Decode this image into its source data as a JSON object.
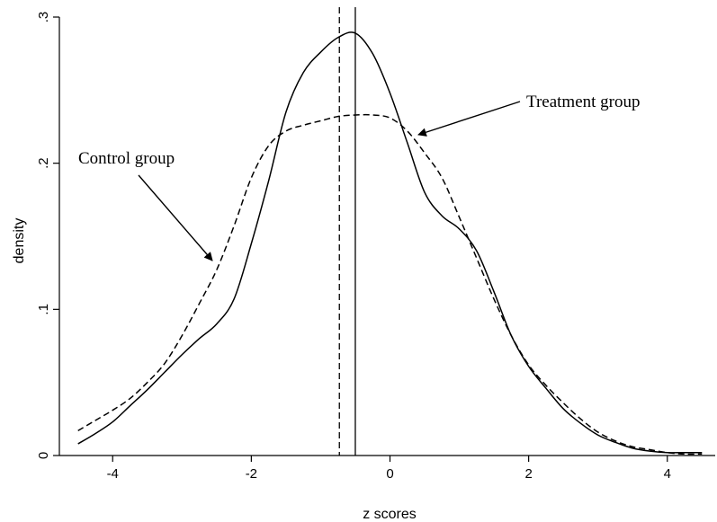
{
  "chart_data": {
    "type": "line",
    "title": "",
    "xlabel": "z scores",
    "ylabel": "density",
    "xlim": [
      -4.6,
      4.6
    ],
    "ylim": [
      0,
      0.3
    ],
    "x_ticks": [
      {
        "value": -4,
        "label": "-4"
      },
      {
        "value": -2,
        "label": "-2"
      },
      {
        "value": 0,
        "label": "0"
      },
      {
        "value": 2,
        "label": "2"
      },
      {
        "value": 4,
        "label": "4"
      }
    ],
    "y_ticks": [
      {
        "value": 0,
        "label": "0"
      },
      {
        "value": 0.1,
        "label": ".1"
      },
      {
        "value": 0.2,
        "label": ".2"
      },
      {
        "value": 0.3,
        "label": ".3"
      }
    ],
    "grid": false,
    "legend": "none",
    "series": [
      {
        "key": "treatment",
        "style": "solid",
        "x": [
          -4.5,
          -4.25,
          -4.0,
          -3.75,
          -3.5,
          -3.25,
          -3.0,
          -2.75,
          -2.5,
          -2.25,
          -2.0,
          -1.75,
          -1.5,
          -1.25,
          -1.0,
          -0.75,
          -0.5,
          -0.25,
          0.0,
          0.25,
          0.5,
          0.75,
          1.0,
          1.25,
          1.5,
          1.75,
          2.0,
          2.25,
          2.5,
          2.75,
          3.0,
          3.25,
          3.5,
          3.75,
          4.0,
          4.25,
          4.5
        ],
        "y": [
          0.008,
          0.015,
          0.023,
          0.034,
          0.045,
          0.057,
          0.069,
          0.08,
          0.09,
          0.107,
          0.145,
          0.188,
          0.235,
          0.262,
          0.276,
          0.286,
          0.289,
          0.275,
          0.248,
          0.214,
          0.18,
          0.164,
          0.155,
          0.14,
          0.112,
          0.082,
          0.061,
          0.046,
          0.032,
          0.022,
          0.014,
          0.009,
          0.005,
          0.003,
          0.002,
          0.002,
          0.002
        ]
      },
      {
        "key": "control",
        "style": "dashed",
        "x": [
          -4.5,
          -4.25,
          -4.0,
          -3.75,
          -3.5,
          -3.25,
          -3.0,
          -2.75,
          -2.5,
          -2.25,
          -2.0,
          -1.75,
          -1.5,
          -1.25,
          -1.0,
          -0.75,
          -0.5,
          -0.25,
          0.0,
          0.25,
          0.5,
          0.75,
          1.0,
          1.25,
          1.5,
          1.75,
          2.0,
          2.25,
          2.5,
          2.75,
          3.0,
          3.25,
          3.5,
          3.75,
          4.0,
          4.25,
          4.5
        ],
        "y": [
          0.017,
          0.024,
          0.031,
          0.039,
          0.05,
          0.063,
          0.082,
          0.104,
          0.127,
          0.157,
          0.19,
          0.212,
          0.222,
          0.226,
          0.229,
          0.232,
          0.233,
          0.233,
          0.231,
          0.222,
          0.207,
          0.19,
          0.163,
          0.135,
          0.107,
          0.082,
          0.062,
          0.048,
          0.036,
          0.025,
          0.016,
          0.01,
          0.006,
          0.004,
          0.002,
          0.001,
          0.001
        ]
      }
    ],
    "reference_lines": [
      {
        "axis": "x",
        "value": -0.73,
        "style": "dashed"
      },
      {
        "axis": "x",
        "value": -0.5,
        "style": "solid"
      }
    ],
    "annotations": [
      {
        "text": "Treatment group",
        "points_to": {
          "x": 0.2,
          "y": 0.219
        }
      },
      {
        "text": "Control group",
        "points_to": {
          "x": -2.55,
          "y": 0.132
        }
      }
    ]
  }
}
